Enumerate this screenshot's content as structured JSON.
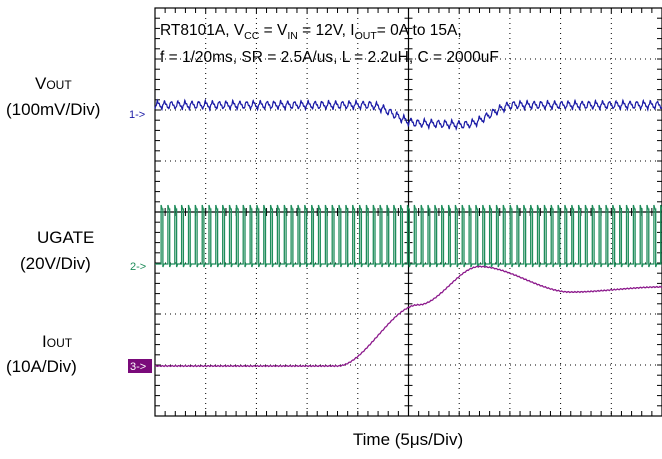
{
  "title": {
    "line1": {
      "part1": "RT8101A, V",
      "sub_cc": "CC",
      "part2": " = V",
      "sub_in": "IN",
      "part3": " = 12V, I",
      "sub_out": "OUT",
      "part4": "= 0A to 15A,"
    },
    "line2": "f = 1/20ms, SR = 2.5A/us, L = 2.2uH, C = 2000uF"
  },
  "labels": {
    "vout_main": "V",
    "vout_sub": "OUT",
    "vout_scale": "(100mV/Div)",
    "ugate_name": "UGATE",
    "ugate_scale": "(20V/Div)",
    "iout_main": "I",
    "iout_sub": "OUT",
    "iout_scale": "(10A/Div)"
  },
  "markers": {
    "ch1": "1->",
    "ch2": "2->",
    "ch3": "3->"
  },
  "x_axis_label": "Time (5μs/Div)",
  "colors": {
    "ch1": "#1a1aa6",
    "ch2": "#1e8c5a",
    "ch3": "#8c1a8c",
    "marker3_bg": "#7a0a7a",
    "grid": "#000000"
  },
  "chart_data": {
    "type": "line",
    "x_divisions": 10,
    "y_divisions": 8,
    "grid": "dotted",
    "series": [
      {
        "channel": 1,
        "ripple_period_div": 0.135,
        "ripple_amplitude_div": 0.28,
        "offset_profile": [
          [
            0,
            0
          ],
          [
            4.2,
            0
          ],
          [
            5.2,
            -0.65
          ],
          [
            6.1,
            -0.7
          ],
          [
            7.1,
            0
          ],
          [
            10,
            0
          ]
        ]
      },
      {
        "channel": 2,
        "pulse_period_div": 0.135,
        "amplitude_div": 1.1,
        "level_div": 0
      },
      {
        "channel": 3,
        "unit": "A",
        "profile": [
          [
            0,
            0
          ],
          [
            3.6,
            0
          ],
          [
            5.2,
            1.2
          ],
          [
            6.4,
            1.95
          ],
          [
            8.2,
            1.45
          ],
          [
            10,
            1.55
          ]
        ]
      }
    ]
  }
}
